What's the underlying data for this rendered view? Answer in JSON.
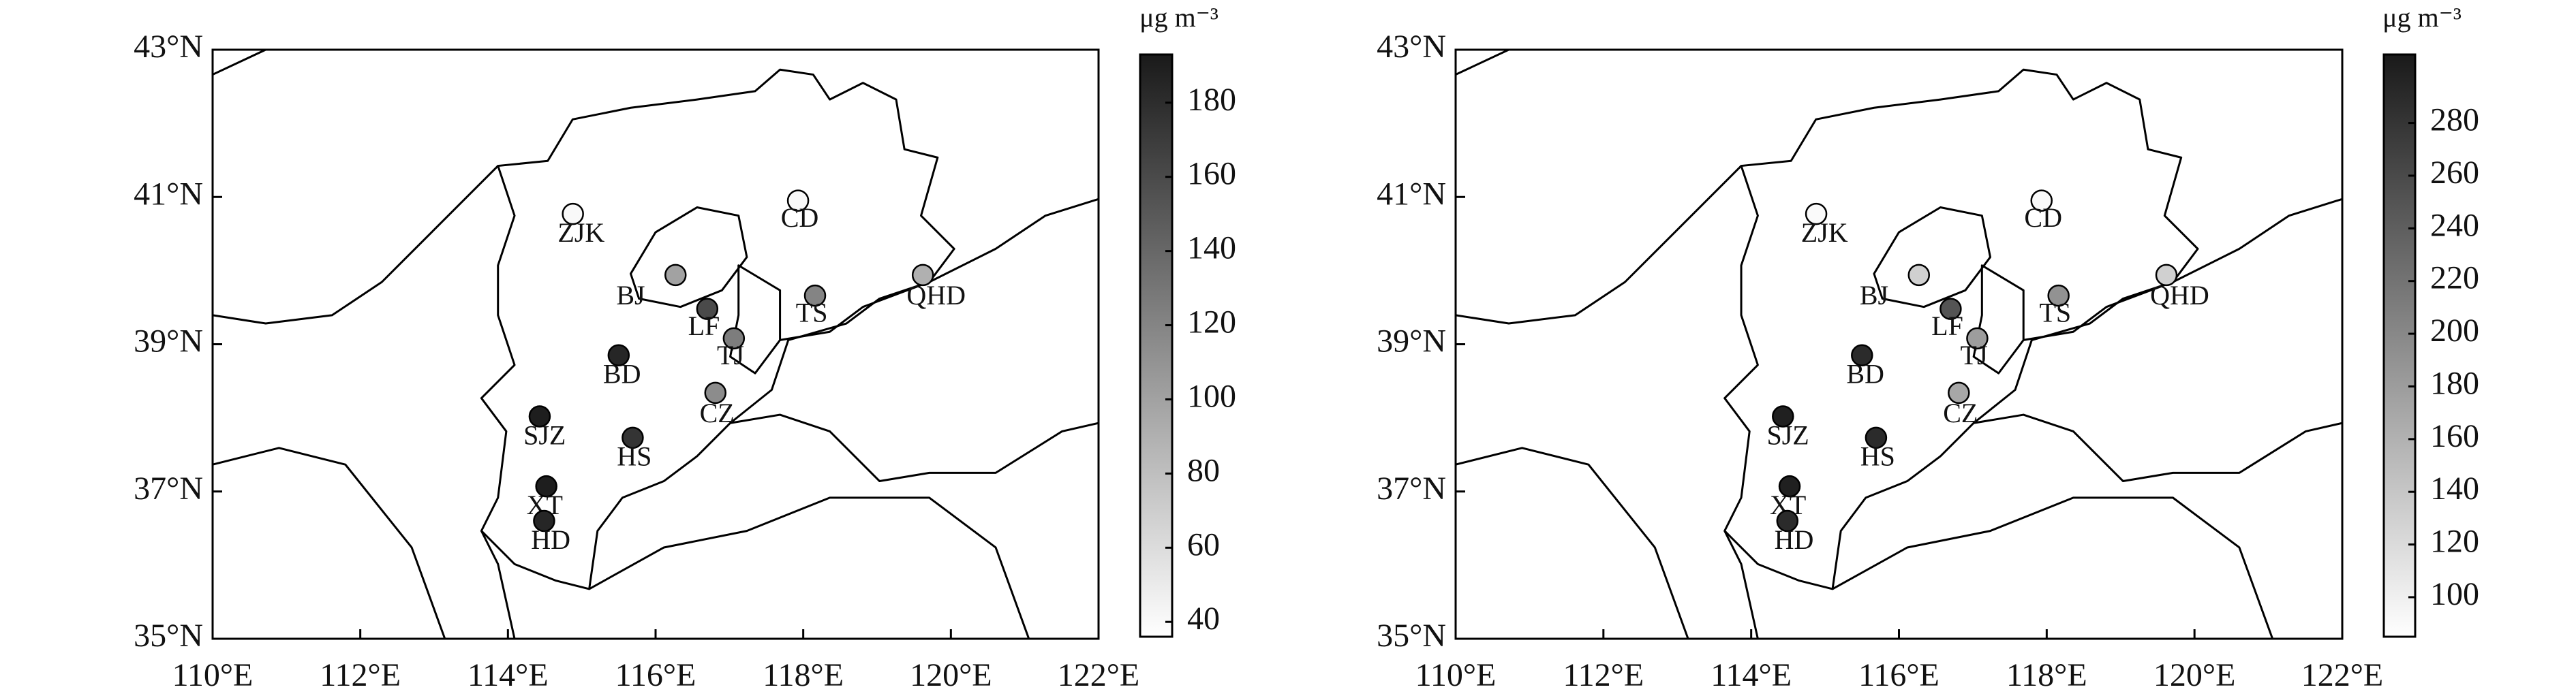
{
  "panels": [
    {
      "xlim": [
        110,
        122
      ],
      "ylim": [
        35,
        43
      ],
      "xticks": [
        {
          "value": 110,
          "label": "110°E"
        },
        {
          "value": 112,
          "label": "112°E"
        },
        {
          "value": 114,
          "label": "114°E"
        },
        {
          "value": 116,
          "label": "116°E"
        },
        {
          "value": 118,
          "label": "118°E"
        },
        {
          "value": 120,
          "label": "120°E"
        },
        {
          "value": 122,
          "label": "122°E"
        }
      ],
      "yticks": [
        {
          "value": 35,
          "label": "35°N"
        },
        {
          "value": 37,
          "label": "37°N"
        },
        {
          "value": 39,
          "label": "39°N"
        },
        {
          "value": 41,
          "label": "41°N"
        },
        {
          "value": 43,
          "label": "43°N"
        }
      ],
      "colorbar": {
        "label": "μg m⁻³",
        "clim": [
          36,
          193
        ],
        "ticks": [
          40,
          60,
          80,
          100,
          120,
          140,
          160,
          180
        ]
      },
      "stations": [
        {
          "name": "ZJK",
          "lon": 114.88,
          "lat": 40.77,
          "value": 40
        },
        {
          "name": "CD",
          "lon": 117.93,
          "lat": 40.95,
          "value": 40
        },
        {
          "name": "BJ",
          "lon": 116.27,
          "lat": 39.94,
          "value": 100
        },
        {
          "name": "LF",
          "lon": 116.7,
          "lat": 39.48,
          "value": 160
        },
        {
          "name": "TS",
          "lon": 118.16,
          "lat": 39.66,
          "value": 120
        },
        {
          "name": "QHD",
          "lon": 119.62,
          "lat": 39.94,
          "value": 90
        },
        {
          "name": "TJ",
          "lon": 117.06,
          "lat": 39.08,
          "value": 125
        },
        {
          "name": "BD",
          "lon": 115.5,
          "lat": 38.85,
          "value": 185
        },
        {
          "name": "CZ",
          "lon": 116.81,
          "lat": 38.34,
          "value": 115
        },
        {
          "name": "SJZ",
          "lon": 114.43,
          "lat": 38.02,
          "value": 190
        },
        {
          "name": "HS",
          "lon": 115.69,
          "lat": 37.73,
          "value": 175
        },
        {
          "name": "XT",
          "lon": 114.52,
          "lat": 37.07,
          "value": 190
        },
        {
          "name": "HD",
          "lon": 114.49,
          "lat": 36.6,
          "value": 185
        }
      ]
    },
    {
      "xlim": [
        110,
        122
      ],
      "ylim": [
        35,
        43
      ],
      "xticks": [
        {
          "value": 110,
          "label": "110°E"
        },
        {
          "value": 112,
          "label": "112°E"
        },
        {
          "value": 114,
          "label": "114°E"
        },
        {
          "value": 116,
          "label": "116°E"
        },
        {
          "value": 118,
          "label": "118°E"
        },
        {
          "value": 120,
          "label": "120°E"
        },
        {
          "value": 122,
          "label": "122°E"
        }
      ],
      "yticks": [
        {
          "value": 35,
          "label": "35°N"
        },
        {
          "value": 37,
          "label": "37°N"
        },
        {
          "value": 39,
          "label": "39°N"
        },
        {
          "value": 41,
          "label": "41°N"
        },
        {
          "value": 43,
          "label": "43°N"
        }
      ],
      "colorbar": {
        "label": "μg m⁻³",
        "clim": [
          85,
          306
        ],
        "ticks": [
          100,
          120,
          140,
          160,
          180,
          200,
          220,
          240,
          260,
          280
        ]
      },
      "stations": [
        {
          "name": "ZJK",
          "lon": 114.88,
          "lat": 40.77,
          "value": 90
        },
        {
          "name": "CD",
          "lon": 117.93,
          "lat": 40.95,
          "value": 90
        },
        {
          "name": "BJ",
          "lon": 116.27,
          "lat": 39.94,
          "value": 130
        },
        {
          "name": "LF",
          "lon": 116.7,
          "lat": 39.48,
          "value": 250
        },
        {
          "name": "TS",
          "lon": 118.16,
          "lat": 39.66,
          "value": 190
        },
        {
          "name": "QHD",
          "lon": 119.62,
          "lat": 39.94,
          "value": 130
        },
        {
          "name": "TJ",
          "lon": 117.06,
          "lat": 39.08,
          "value": 180
        },
        {
          "name": "BD",
          "lon": 115.5,
          "lat": 38.85,
          "value": 290
        },
        {
          "name": "CZ",
          "lon": 116.81,
          "lat": 38.34,
          "value": 170
        },
        {
          "name": "SJZ",
          "lon": 114.43,
          "lat": 38.02,
          "value": 300
        },
        {
          "name": "HS",
          "lon": 115.69,
          "lat": 37.73,
          "value": 290
        },
        {
          "name": "XT",
          "lon": 114.52,
          "lat": 37.07,
          "value": 300
        },
        {
          "name": "HD",
          "lon": 114.49,
          "lat": 36.6,
          "value": 290
        }
      ]
    }
  ]
}
